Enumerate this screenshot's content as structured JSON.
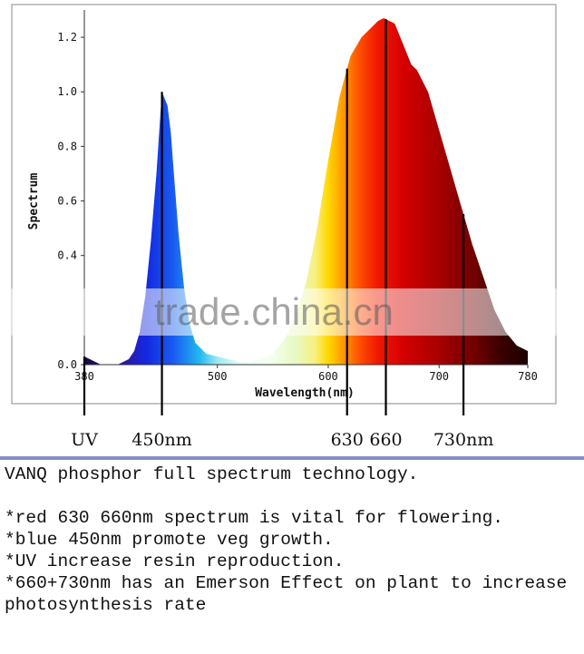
{
  "chart_data": {
    "type": "area",
    "xlabel": "Wavelength(nm)",
    "ylabel": "Spectrum",
    "xlim": [
      380,
      780
    ],
    "ylim": [
      0,
      1.3
    ],
    "x_ticks": [
      "380",
      "500",
      "600",
      "700",
      "780"
    ],
    "y_ticks": [
      "0.0",
      "0.4",
      "0.6",
      "0.8",
      "1.0",
      "1.2"
    ],
    "grid": false,
    "series": [
      {
        "x": [
          380,
          385,
          390,
          395,
          400,
          410,
          420,
          425,
          430,
          435,
          440,
          445,
          448,
          450,
          452,
          455,
          458,
          460,
          465,
          470,
          475,
          480,
          490,
          500,
          510,
          520,
          530,
          540,
          550,
          560,
          570,
          580,
          590,
          600,
          610,
          620,
          630,
          640,
          645,
          650,
          655,
          660,
          665,
          670,
          675,
          680,
          690,
          700,
          710,
          720,
          730,
          740,
          750,
          760,
          770,
          780
        ],
        "y": [
          0.03,
          0.02,
          0.01,
          0.0,
          0.0,
          0.0,
          0.02,
          0.05,
          0.12,
          0.25,
          0.45,
          0.7,
          0.88,
          1.0,
          0.98,
          0.95,
          0.85,
          0.74,
          0.48,
          0.28,
          0.15,
          0.08,
          0.04,
          0.03,
          0.02,
          0.01,
          0.01,
          0.02,
          0.04,
          0.09,
          0.17,
          0.3,
          0.5,
          0.75,
          0.98,
          1.13,
          1.2,
          1.24,
          1.26,
          1.27,
          1.26,
          1.25,
          1.2,
          1.15,
          1.1,
          1.08,
          1.0,
          0.86,
          0.72,
          0.58,
          0.44,
          0.32,
          0.2,
          0.12,
          0.07,
          0.05
        ]
      }
    ],
    "markers": [
      {
        "x": 380,
        "label": "UV"
      },
      {
        "x": 450,
        "label": "450nm"
      },
      {
        "x": 617,
        "label": "630"
      },
      {
        "x": 652,
        "label": "660"
      },
      {
        "x": 722,
        "label": "730nm"
      }
    ]
  },
  "watermark": "trade.china.cn",
  "description": {
    "title": "VANQ phosphor full spectrum technology.",
    "bullets": [
      "*red 630 660nm spectrum is vital for flowering.",
      "*blue 450nm promote veg growth.",
      "*UV increase resin reproduction.",
      "*660+730nm has an Emerson Effect on plant to increase photosynthesis rate"
    ]
  }
}
